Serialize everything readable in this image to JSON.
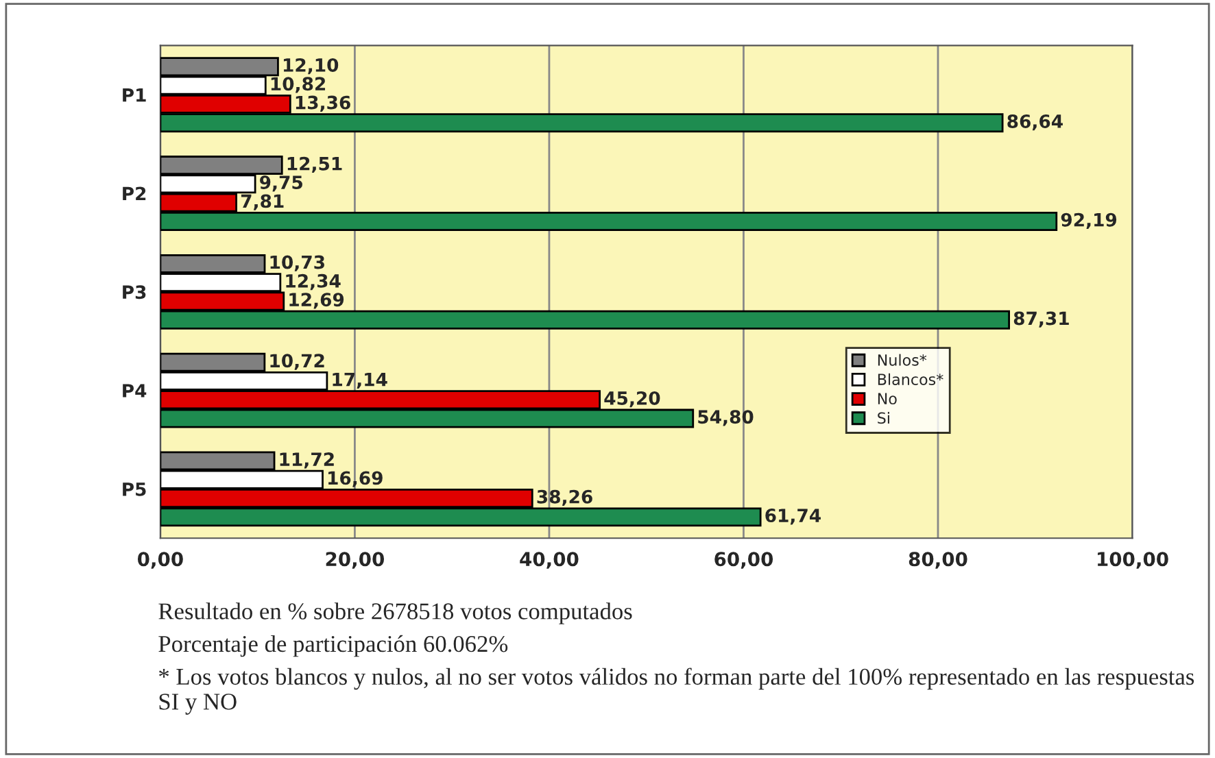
{
  "chart_data": {
    "type": "bar",
    "orientation": "horizontal",
    "categories": [
      "P1",
      "P2",
      "P3",
      "P4",
      "P5"
    ],
    "series": [
      {
        "name": "Nulos*",
        "color": "#808080",
        "values": [
          12.1,
          12.51,
          10.73,
          10.72,
          11.72
        ],
        "value_labels": [
          "12,10",
          "12,51",
          "10,73",
          "10,72",
          "11,72"
        ]
      },
      {
        "name": "Blancos*",
        "color": "#ffffff",
        "values": [
          10.82,
          9.75,
          12.34,
          17.14,
          16.69
        ],
        "value_labels": [
          "10,82",
          "9,75",
          "12,34",
          "17,14",
          "16,69"
        ]
      },
      {
        "name": "No",
        "color": "#e00000",
        "values": [
          13.36,
          7.81,
          12.69,
          45.2,
          38.26
        ],
        "value_labels": [
          "13,36",
          "7,81",
          "12,69",
          "45,20",
          "38,26"
        ]
      },
      {
        "name": "Si",
        "color": "#1e8c50",
        "values": [
          86.64,
          92.19,
          87.31,
          54.8,
          61.74
        ],
        "value_labels": [
          "86,64",
          "92,19",
          "87,31",
          "54,80",
          "61,74"
        ]
      }
    ],
    "xlim": [
      0,
      100
    ],
    "xticks": [
      {
        "value": 0,
        "label": "0,00"
      },
      {
        "value": 20,
        "label": "20,00"
      },
      {
        "value": 40,
        "label": "40,00"
      },
      {
        "value": 60,
        "label": "60,00"
      },
      {
        "value": 80,
        "label": "80,00"
      },
      {
        "value": 100,
        "label": "100,00"
      }
    ],
    "grid": "x",
    "legend": "right",
    "annotations": [
      "Resultado en % sobre 2678518 votos computados",
      "Porcentaje de participación 60.062%",
      "* Los votos blancos y nulos, al no ser votos válidos no forman parte del 100% representado en las respuestas SI y NO"
    ]
  }
}
